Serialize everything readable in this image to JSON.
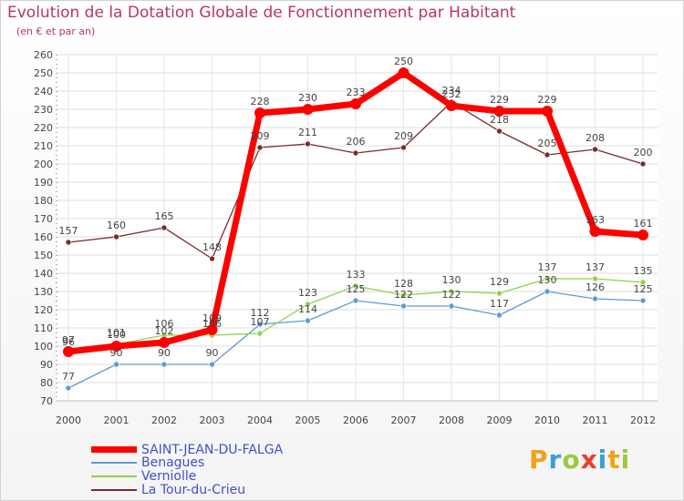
{
  "chart_data": {
    "type": "line",
    "title": "Evolution de la Dotation Globale de Fonctionnement par Habitant",
    "subtitle": "(en € et par an)",
    "xlabel": "",
    "ylabel": "",
    "ylim": [
      70,
      260
    ],
    "yticks": [
      70,
      80,
      90,
      100,
      110,
      120,
      130,
      140,
      150,
      160,
      170,
      180,
      190,
      200,
      210,
      220,
      230,
      240,
      250,
      260
    ],
    "categories": [
      "2000",
      "2001",
      "2002",
      "2003",
      "2004",
      "2005",
      "2006",
      "2007",
      "2008",
      "2009",
      "2010",
      "2011",
      "2012"
    ],
    "grid": true,
    "series": [
      {
        "name": "SAINT-JEAN-DU-FALGA",
        "color": "#ff0000",
        "values": [
          97,
          100,
          102,
          109,
          228,
          230,
          233,
          250,
          232,
          229,
          229,
          163,
          161
        ]
      },
      {
        "name": "Benagues",
        "color": "#5b9bd5",
        "values": [
          77,
          90,
          90,
          90,
          112,
          114,
          125,
          122,
          122,
          117,
          130,
          126,
          125
        ]
      },
      {
        "name": "Verniolle",
        "color": "#8fd14f",
        "values": [
          96,
          101,
          106,
          106,
          107,
          123,
          133,
          128,
          130,
          129,
          137,
          137,
          135
        ]
      },
      {
        "name": "La Tour-du-Crieu",
        "color": "#7a2a2a",
        "values": [
          157,
          160,
          165,
          148,
          209,
          211,
          206,
          209,
          234,
          218,
          205,
          208,
          200
        ]
      }
    ]
  },
  "branding": {
    "logo_letters": [
      "P",
      "r",
      "o",
      "x",
      "i",
      "t",
      "i"
    ]
  }
}
